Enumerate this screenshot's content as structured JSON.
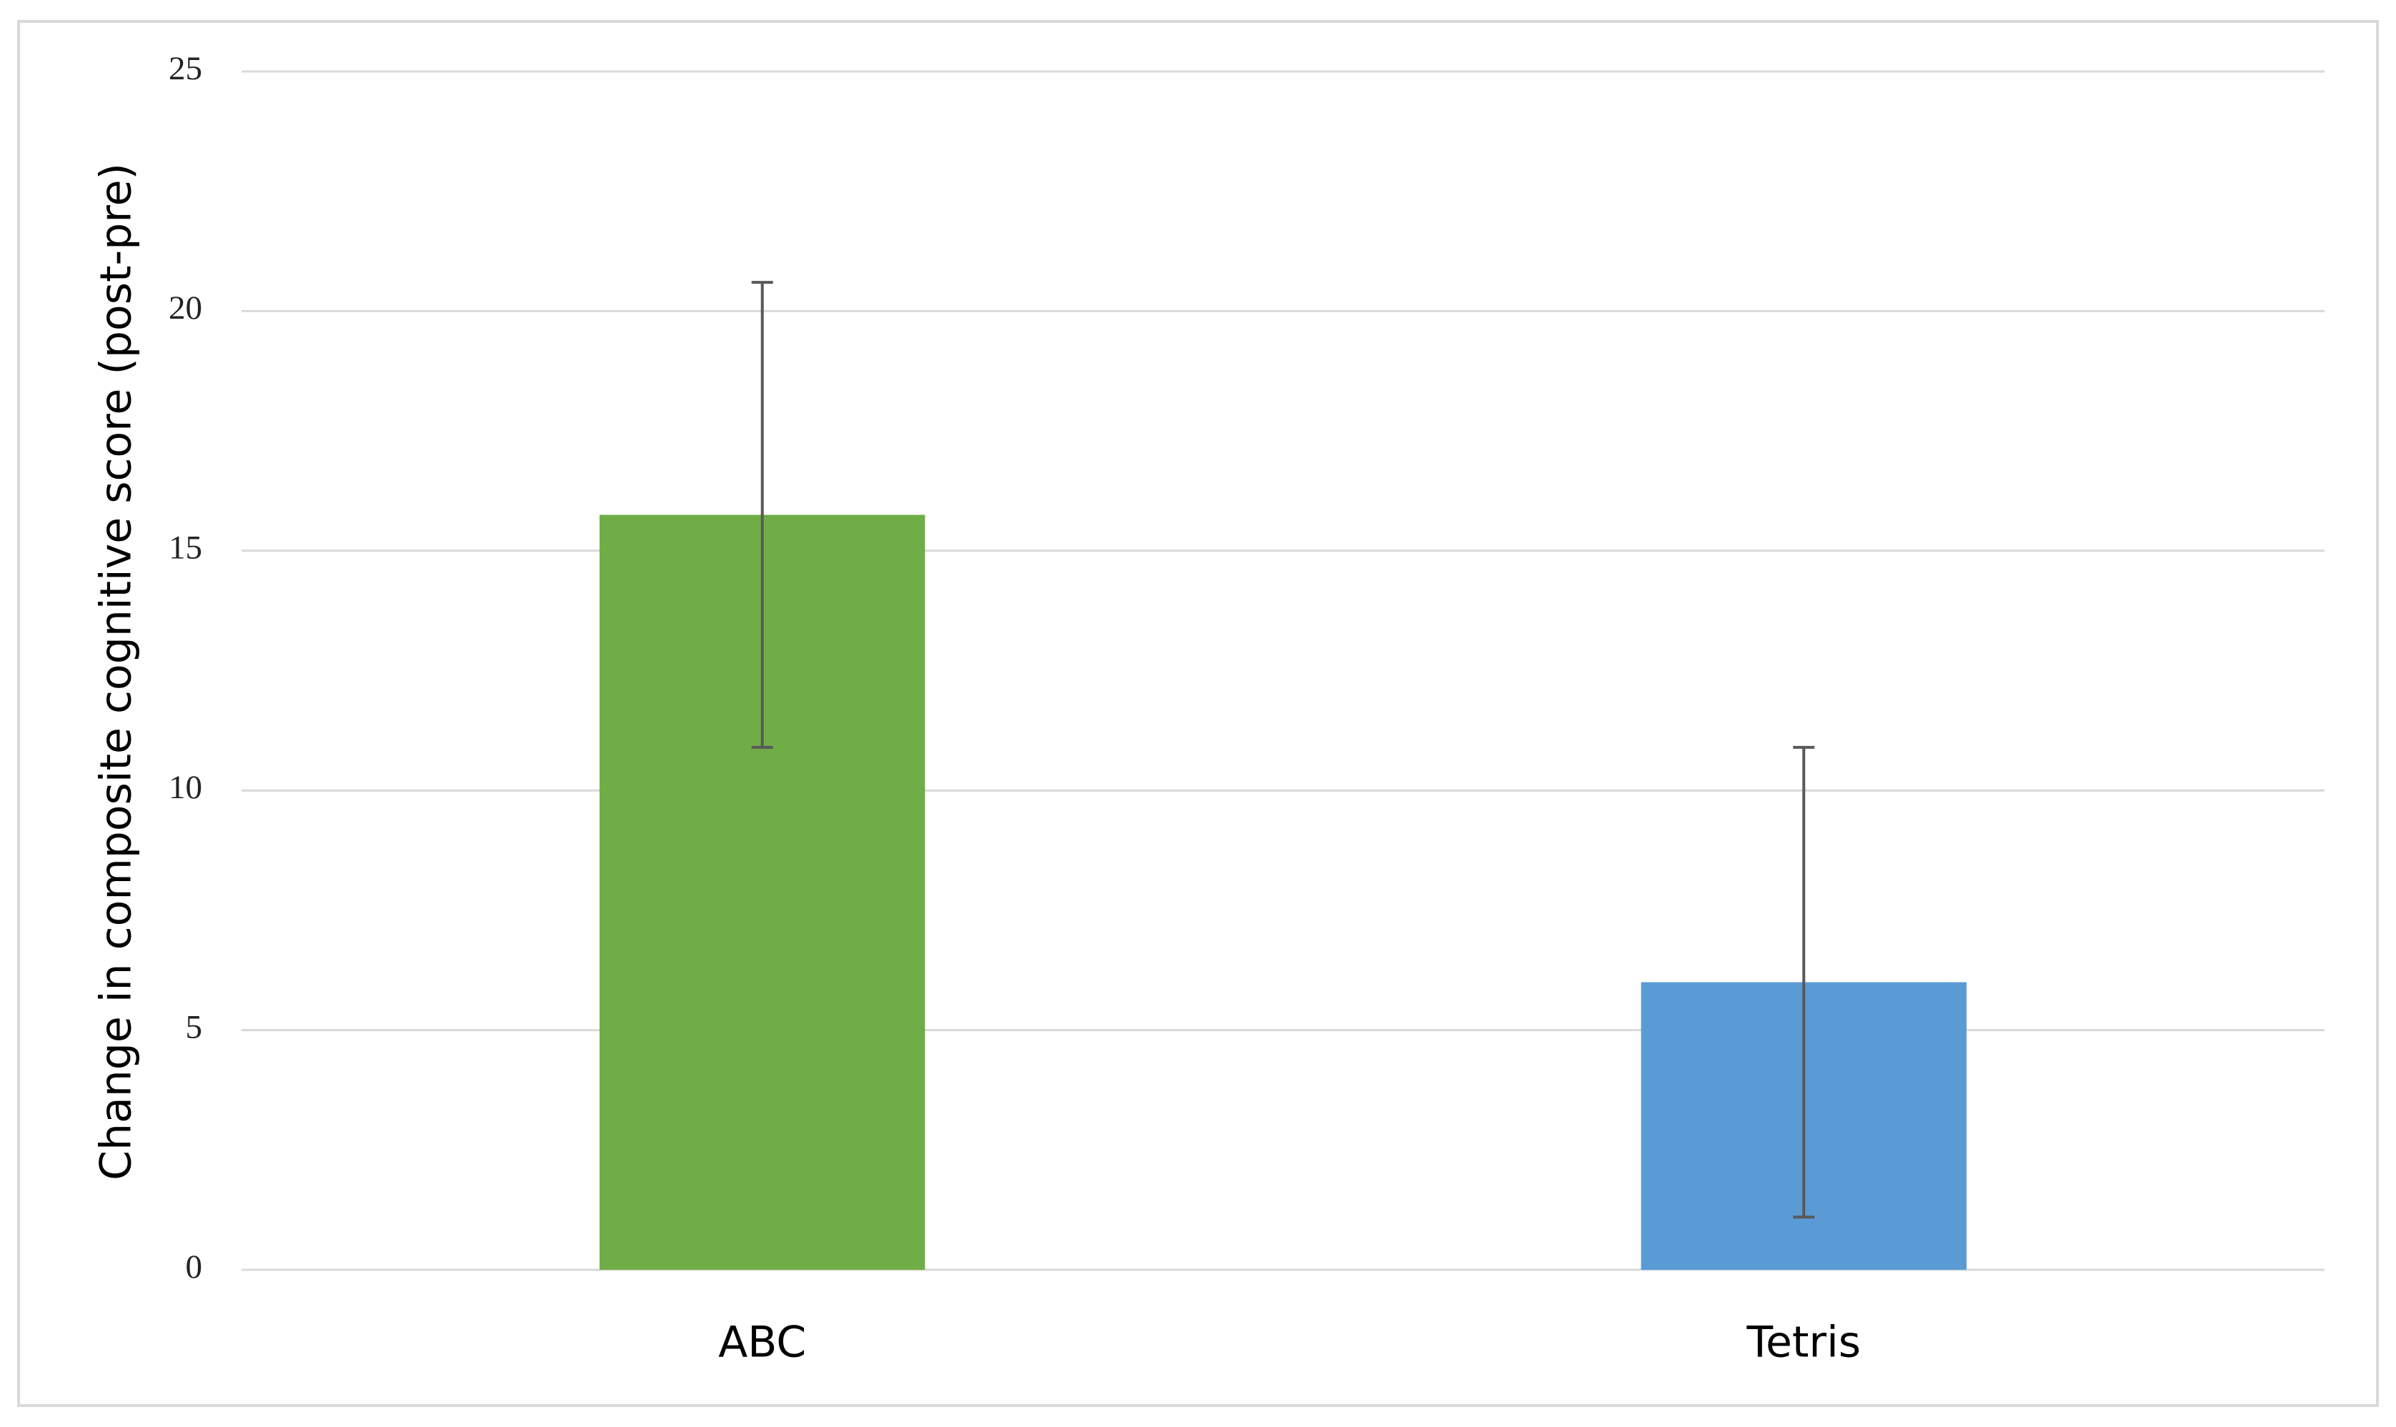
{
  "chart_data": {
    "type": "bar",
    "y_label": "Change in composite cognitive score (post-pre)",
    "categories": [
      "ABC",
      "Tetris"
    ],
    "values": [
      15.75,
      6.0
    ],
    "errors": [
      4.85,
      4.9
    ],
    "colors": [
      "#70ad47",
      "#5b9bd5"
    ],
    "error_color": "#595959",
    "ylim": [
      0,
      25
    ],
    "yticks": [
      0,
      5,
      10,
      15,
      20,
      25
    ],
    "grid": true
  }
}
